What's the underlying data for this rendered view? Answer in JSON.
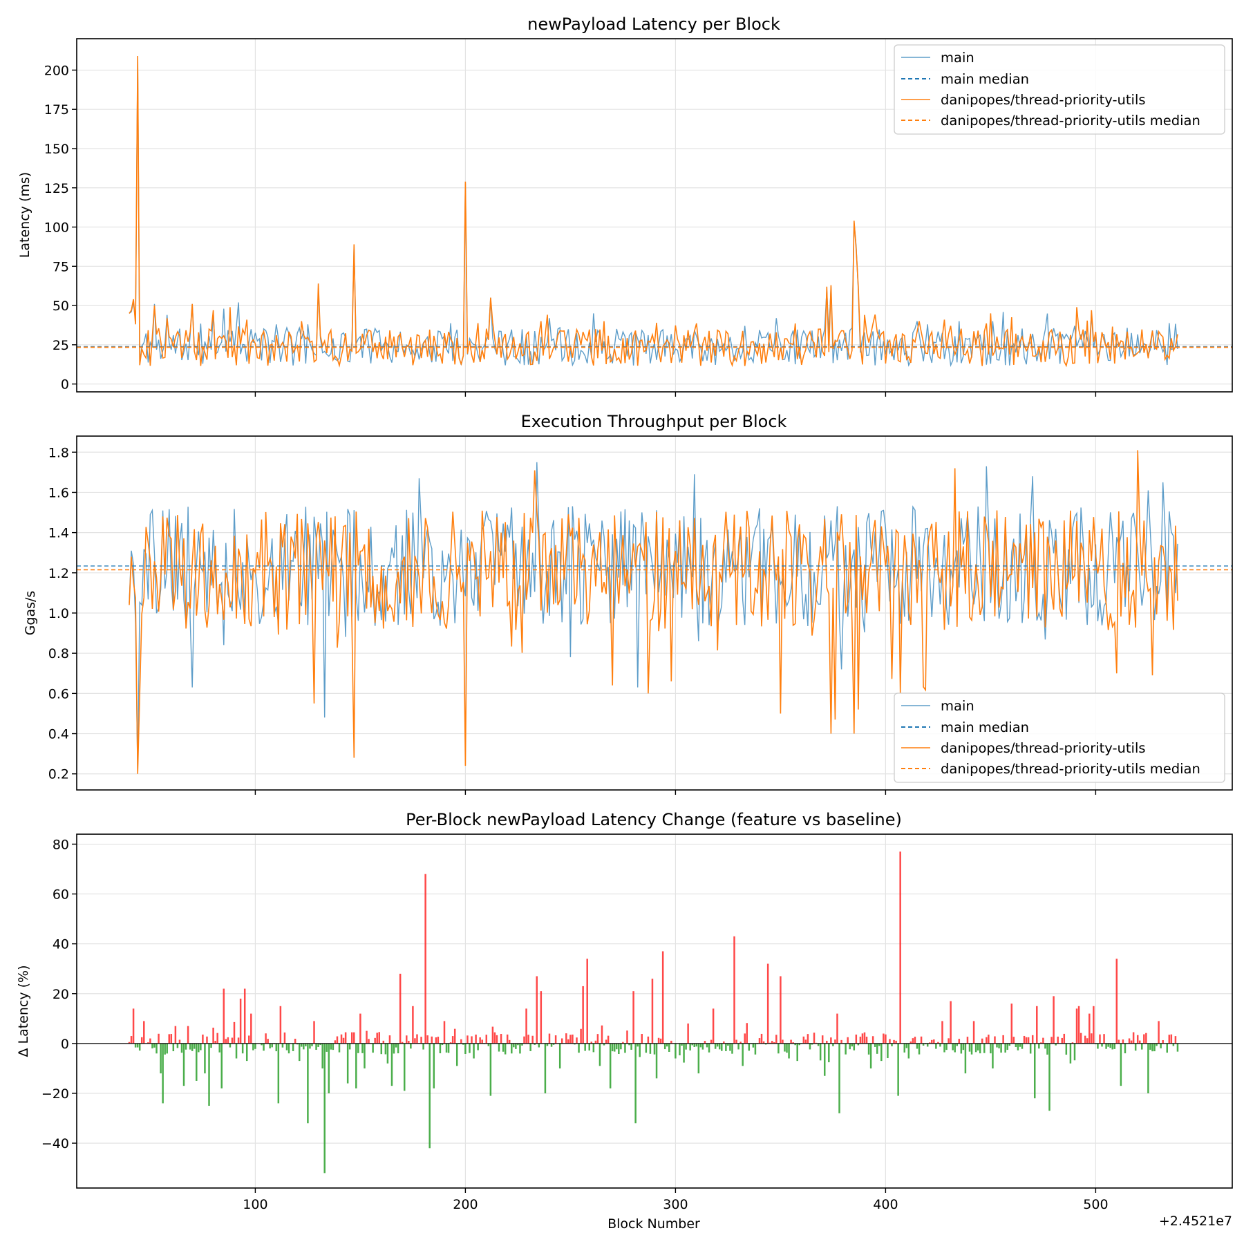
{
  "colors": {
    "main": "#1f77b4",
    "feature": "#ff7f0e",
    "positive": "#ff1a1a",
    "negative": "#2ca02c"
  },
  "x_offset_label": "+2.4521e7",
  "chart_data": [
    {
      "type": "line",
      "title": "newPayload Latency per Block",
      "xlabel": "",
      "ylabel": "Latency (ms)",
      "xlim": [
        15,
        565
      ],
      "ylim": [
        -5,
        220
      ],
      "xticks": [
        100,
        200,
        300,
        400,
        500
      ],
      "show_xtick_labels": false,
      "yticks": [
        0,
        25,
        50,
        75,
        100,
        125,
        150,
        175,
        200
      ],
      "ytick_labels": [
        "0",
        "25",
        "50",
        "75",
        "100",
        "125",
        "150",
        "175",
        "200"
      ],
      "grid": true,
      "legend_placement": "upper-right",
      "x_start": 40,
      "x_end": 539,
      "series": [
        {
          "name": "main",
          "kind": "line",
          "median": 23.8,
          "spikes": [
            [
              40,
              45
            ],
            [
              41,
              46
            ],
            [
              42,
              52
            ],
            [
              43,
              40
            ],
            [
              44,
              208
            ],
            [
              45,
              13
            ],
            [
              52,
              51
            ],
            [
              58,
              44
            ],
            [
              70,
              51
            ],
            [
              80,
              46
            ],
            [
              85,
              48
            ],
            [
              92,
              52
            ],
            [
              110,
              38
            ],
            [
              125,
              38
            ],
            [
              130,
              60
            ],
            [
              147,
              88
            ],
            [
              200,
              128
            ],
            [
              212,
              55
            ],
            [
              240,
              42
            ],
            [
              261,
              45
            ],
            [
              372,
              60
            ],
            [
              374,
              62
            ],
            [
              385,
              103
            ],
            [
              386,
              88
            ],
            [
              387,
              60
            ],
            [
              415,
              40
            ],
            [
              420,
              38
            ],
            [
              435,
              40
            ],
            [
              498,
              45
            ]
          ]
        },
        {
          "name": "main median",
          "kind": "median",
          "value": 23.8
        },
        {
          "name": "danipopes/thread-priority-utils",
          "kind": "line",
          "median": 23.4,
          "spikes": [
            [
              40,
              45
            ],
            [
              41,
              47
            ],
            [
              42,
              54
            ],
            [
              43,
              38
            ],
            [
              44,
              209
            ],
            [
              45,
              12
            ],
            [
              52,
              50
            ],
            [
              58,
              42
            ],
            [
              70,
              51
            ],
            [
              80,
              47
            ],
            [
              88,
              49
            ],
            [
              96,
              41
            ],
            [
              122,
              40
            ],
            [
              130,
              64
            ],
            [
              147,
              89
            ],
            [
              200,
              129
            ],
            [
              212,
              55
            ],
            [
              236,
              40
            ],
            [
              266,
              40
            ],
            [
              291,
              39
            ],
            [
              372,
              62
            ],
            [
              374,
              63
            ],
            [
              385,
              104
            ],
            [
              386,
              86
            ],
            [
              387,
              62
            ],
            [
              390,
              44
            ],
            [
              416,
              40
            ],
            [
              428,
              41
            ],
            [
              450,
              45
            ],
            [
              491,
              49
            ],
            [
              498,
              47
            ]
          ]
        },
        {
          "name": "danipopes/thread-priority-utils median",
          "kind": "median",
          "value": 23.4
        }
      ]
    },
    {
      "type": "line",
      "title": "Execution Throughput per Block",
      "xlabel": "",
      "ylabel": "Ggas/s",
      "xlim": [
        15,
        565
      ],
      "ylim": [
        0.12,
        1.88
      ],
      "xticks": [
        100,
        200,
        300,
        400,
        500
      ],
      "show_xtick_labels": false,
      "yticks": [
        0.2,
        0.4,
        0.6,
        0.8,
        1.0,
        1.2,
        1.4,
        1.6,
        1.8
      ],
      "ytick_labels": [
        "0.2",
        "0.4",
        "0.6",
        "0.8",
        "1.0",
        "1.2",
        "1.4",
        "1.6",
        "1.8"
      ],
      "grid": true,
      "legend_placement": "lower-right",
      "x_start": 40,
      "x_end": 539,
      "series": [
        {
          "name": "main",
          "kind": "line",
          "median": 1.234,
          "spikes": [
            [
              40,
              1.05
            ],
            [
              41,
              1.31
            ],
            [
              44,
              0.21
            ],
            [
              56,
              1.51
            ],
            [
              70,
              0.63
            ],
            [
              133,
              0.48
            ],
            [
              178,
              1.67
            ],
            [
              234,
              1.75
            ],
            [
              282,
              0.63
            ],
            [
              309,
              1.69
            ],
            [
              379,
              0.72
            ],
            [
              448,
              1.73
            ],
            [
              470,
              1.68
            ],
            [
              517,
              1.47
            ],
            [
              525,
              1.61
            ],
            [
              532,
              1.65
            ]
          ]
        },
        {
          "name": "main median",
          "kind": "median",
          "value": 1.234
        },
        {
          "name": "danipopes/thread-priority-utils",
          "kind": "line",
          "median": 1.215,
          "spikes": [
            [
              40,
              1.04
            ],
            [
              41,
              1.28
            ],
            [
              44,
              0.2
            ],
            [
              45,
              0.6
            ],
            [
              56,
              1.48
            ],
            [
              128,
              0.55
            ],
            [
              147,
              0.28
            ],
            [
              200,
              0.24
            ],
            [
              233,
              1.71
            ],
            [
              270,
              0.64
            ],
            [
              298,
              0.66
            ],
            [
              350,
              0.5
            ],
            [
              374,
              0.4
            ],
            [
              376,
              0.47
            ],
            [
              385,
              0.4
            ],
            [
              387,
              0.52
            ],
            [
              407,
              0.6
            ],
            [
              433,
              1.72
            ],
            [
              510,
              0.7
            ],
            [
              520,
              1.81
            ],
            [
              527,
              0.69
            ]
          ]
        },
        {
          "name": "danipopes/thread-priority-utils median",
          "kind": "median",
          "value": 1.215
        }
      ]
    },
    {
      "type": "bar",
      "title": "Per-Block newPayload Latency Change (feature vs baseline)",
      "xlabel": "Block Number",
      "ylabel": "Δ Latency (%)",
      "xlim": [
        15,
        565
      ],
      "ylim": [
        -58,
        84
      ],
      "xticks": [
        100,
        200,
        300,
        400,
        500
      ],
      "show_xtick_labels": true,
      "xtick_labels": [
        "100",
        "200",
        "300",
        "400",
        "500"
      ],
      "yticks": [
        -40,
        -20,
        0,
        20,
        40,
        60,
        80
      ],
      "ytick_labels": [
        "−40",
        "−20",
        "0",
        "20",
        "40",
        "60",
        "80"
      ],
      "grid": true,
      "zero_line": true,
      "x_start": 40,
      "x_end": 539,
      "spikes": [
        [
          42,
          14
        ],
        [
          53,
          -4
        ],
        [
          55,
          -12
        ],
        [
          56,
          -24
        ],
        [
          62,
          7
        ],
        [
          66,
          -17
        ],
        [
          68,
          7
        ],
        [
          72,
          -15
        ],
        [
          76,
          -12
        ],
        [
          78,
          -25
        ],
        [
          84,
          -18
        ],
        [
          85,
          22
        ],
        [
          91,
          -6
        ],
        [
          93,
          18
        ],
        [
          95,
          22
        ],
        [
          96,
          -7
        ],
        [
          98,
          12
        ],
        [
          111,
          -24
        ],
        [
          112,
          15
        ],
        [
          121,
          -7
        ],
        [
          125,
          -32
        ],
        [
          128,
          9
        ],
        [
          132,
          -10
        ],
        [
          133,
          -52
        ],
        [
          135,
          -20
        ],
        [
          144,
          -16
        ],
        [
          148,
          -18
        ],
        [
          150,
          12
        ],
        [
          152,
          -10
        ],
        [
          163,
          -8
        ],
        [
          165,
          -17
        ],
        [
          169,
          28
        ],
        [
          171,
          -19
        ],
        [
          175,
          15
        ],
        [
          181,
          68
        ],
        [
          183,
          -42
        ],
        [
          185,
          -18
        ],
        [
          190,
          9
        ],
        [
          196,
          -9
        ],
        [
          204,
          -6
        ],
        [
          212,
          -21
        ],
        [
          222,
          -4
        ],
        [
          229,
          14
        ],
        [
          234,
          27
        ],
        [
          236,
          21
        ],
        [
          238,
          -20
        ],
        [
          245,
          -10
        ],
        [
          256,
          23
        ],
        [
          258,
          34
        ],
        [
          264,
          -9
        ],
        [
          269,
          -18
        ],
        [
          280,
          21
        ],
        [
          281,
          -32
        ],
        [
          289,
          26
        ],
        [
          291,
          -14
        ],
        [
          294,
          37
        ],
        [
          300,
          -6
        ],
        [
          311,
          -12
        ],
        [
          318,
          14
        ],
        [
          328,
          43
        ],
        [
          332,
          -9
        ],
        [
          344,
          32
        ],
        [
          350,
          27
        ],
        [
          354,
          -6
        ],
        [
          371,
          -13
        ],
        [
          377,
          12
        ],
        [
          378,
          -28
        ],
        [
          393,
          -10
        ],
        [
          398,
          -7
        ],
        [
          406,
          -21
        ],
        [
          407,
          77
        ],
        [
          411,
          -6
        ],
        [
          427,
          9
        ],
        [
          431,
          17
        ],
        [
          438,
          -12
        ],
        [
          442,
          9
        ],
        [
          451,
          -10
        ],
        [
          460,
          16
        ],
        [
          471,
          -22
        ],
        [
          472,
          15
        ],
        [
          478,
          -27
        ],
        [
          480,
          19
        ],
        [
          488,
          -8
        ],
        [
          491,
          14
        ],
        [
          492,
          15
        ],
        [
          497,
          12
        ],
        [
          499,
          15
        ],
        [
          510,
          34
        ],
        [
          512,
          -17
        ],
        [
          525,
          -20
        ],
        [
          530,
          9
        ]
      ]
    }
  ],
  "legend": {
    "main": "main",
    "main_median": "main median",
    "feature": "danipopes/thread-priority-utils",
    "feature_median": "danipopes/thread-priority-utils median"
  }
}
